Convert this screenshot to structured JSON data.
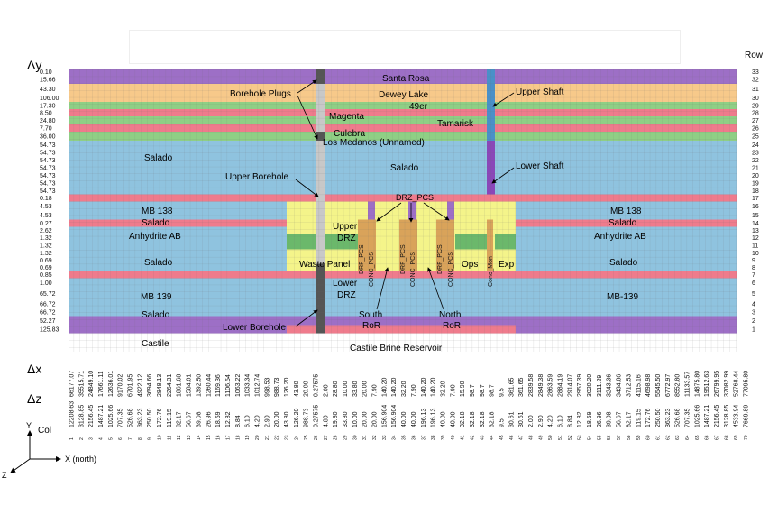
{
  "header": {
    "dy_label": "Δy",
    "row_label": "Row",
    "dx_label": "Δx",
    "dz_label": "Δz",
    "col_label": "Col"
  },
  "colors": {
    "purple": "#9d6fc6",
    "orange": "#f7c98a",
    "green": "#8fcf85",
    "pink": "#ef7b8c",
    "blue": "#8fc3df",
    "yellow": "#f4f48a",
    "waste_green": "#6bb86b",
    "orange_col": "#d9a35a",
    "shaft_blue": "#4a90c8",
    "shaft_purple": "#8a47b8",
    "borehole_dark": "#555555",
    "borehole_light": "#c8c8c8"
  },
  "rows": [
    {
      "row": "33",
      "dy": "0.10",
      "zone": "purple",
      "label": "Santa Rosa"
    },
    {
      "row": "32",
      "dy": "15.66",
      "zone": "purple",
      "label": ""
    },
    {
      "row": "31",
      "dy": "43.30",
      "zone": "orange",
      "label": "Dewey Lake"
    },
    {
      "row": "30",
      "dy": "106.00",
      "zone": "orange",
      "label": ""
    },
    {
      "row": "29",
      "dy": "17.30",
      "zone": "green",
      "label": "49er"
    },
    {
      "row": "28",
      "dy": "8.50",
      "zone": "pink",
      "label": "Magenta"
    },
    {
      "row": "27",
      "dy": "24.80",
      "zone": "green",
      "label": "Tamarisk"
    },
    {
      "row": "26",
      "dy": "7.70",
      "zone": "pink",
      "label": "Culebra"
    },
    {
      "row": "25",
      "dy": "36.00",
      "zone": "green",
      "label": "Los Medanos (Unnamed)"
    },
    {
      "row": "24",
      "dy": "54.73",
      "zone": "blue",
      "label": ""
    },
    {
      "row": "23",
      "dy": "54.73",
      "zone": "blue",
      "label": ""
    },
    {
      "row": "22",
      "dy": "54.73",
      "zone": "blue",
      "label": ""
    },
    {
      "row": "21",
      "dy": "54.73",
      "zone": "blue",
      "label": ""
    },
    {
      "row": "20",
      "dy": "54.73",
      "zone": "blue",
      "label": ""
    },
    {
      "row": "19",
      "dy": "54.73",
      "zone": "blue",
      "label": ""
    },
    {
      "row": "18",
      "dy": "54.73",
      "zone": "blue",
      "label": ""
    },
    {
      "row": "17",
      "dy": "0.18",
      "zone": "pink",
      "label": ""
    },
    {
      "row": "16",
      "dy": "4.53",
      "zone": "blue",
      "label": ""
    },
    {
      "row": "15",
      "dy": "4.53",
      "zone": "blue",
      "label": ""
    },
    {
      "row": "14",
      "dy": "0.27",
      "zone": "pink",
      "label": ""
    },
    {
      "row": "13",
      "dy": "2.62",
      "zone": "blue",
      "label": ""
    },
    {
      "row": "12",
      "dy": "1.32",
      "zone": "blue",
      "label": ""
    },
    {
      "row": "11",
      "dy": "1.32",
      "zone": "blue",
      "label": ""
    },
    {
      "row": "10",
      "dy": "1.32",
      "zone": "blue",
      "label": ""
    },
    {
      "row": "9",
      "dy": "0.69",
      "zone": "blue",
      "label": ""
    },
    {
      "row": "8",
      "dy": "0.69",
      "zone": "blue",
      "label": ""
    },
    {
      "row": "7",
      "dy": "0.85",
      "zone": "pink",
      "label": ""
    },
    {
      "row": "6",
      "dy": "1.00",
      "zone": "blue",
      "label": ""
    },
    {
      "row": "5",
      "dy": "65.72",
      "zone": "blue",
      "label": ""
    },
    {
      "row": "4",
      "dy": "66.72",
      "zone": "blue",
      "label": ""
    },
    {
      "row": "3",
      "dy": "66.72",
      "zone": "blue",
      "label": ""
    },
    {
      "row": "2",
      "dy": "52.27",
      "zone": "purple",
      "label": ""
    },
    {
      "row": "1",
      "dy": "125.83",
      "zone": "purple",
      "label": ""
    }
  ],
  "columns": [
    {
      "col": "1",
      "dx": "66177.07",
      "dz": "12208.63"
    },
    {
      "col": "2",
      "dx": "35515.71",
      "dz": "3128.85"
    },
    {
      "col": "3",
      "dx": "24849.10",
      "dz": "2156.45"
    },
    {
      "col": "4",
      "dx": "17661.11",
      "dz": "1487.21"
    },
    {
      "col": "5",
      "dx": "12636.01",
      "dz": "1025.66"
    },
    {
      "col": "6",
      "dx": "9170.02",
      "dz": "707.35"
    },
    {
      "col": "7",
      "dx": "6701.95",
      "dz": "526.68"
    },
    {
      "col": "8",
      "dx": "4922.12",
      "dz": "363.23"
    },
    {
      "col": "9",
      "dx": "3694.66",
      "dz": "250.50"
    },
    {
      "col": "10",
      "dx": "2848.13",
      "dz": "172.76"
    },
    {
      "col": "11",
      "dx": "2264.31",
      "dz": "119.15"
    },
    {
      "col": "12",
      "dx": "1861.68",
      "dz": "82.17"
    },
    {
      "col": "13",
      "dx": "1584.01",
      "dz": "56.67"
    },
    {
      "col": "14",
      "dx": "1392.50",
      "dz": "39.08"
    },
    {
      "col": "15",
      "dx": "1260.44",
      "dz": "26.96"
    },
    {
      "col": "16",
      "dx": "1169.36",
      "dz": "18.59"
    },
    {
      "col": "17",
      "dx": "1106.54",
      "dz": "12.82"
    },
    {
      "col": "18",
      "dx": "1063.22",
      "dz": "8.84"
    },
    {
      "col": "19",
      "dx": "1033.34",
      "dz": "6.10"
    },
    {
      "col": "20",
      "dx": "1012.74",
      "dz": "4.20"
    },
    {
      "col": "21",
      "dx": "998.53",
      "dz": "2.90"
    },
    {
      "col": "22",
      "dx": "988.73",
      "dz": "20.00"
    },
    {
      "col": "23",
      "dx": "126.20",
      "dz": "43.80"
    },
    {
      "col": "24",
      "dx": "43.80",
      "dz": "126.20"
    },
    {
      "col": "25",
      "dx": "20.00",
      "dz": "988.73"
    },
    {
      "col": "26",
      "dx": "0.27575",
      "dz": "0.27575"
    },
    {
      "col": "27",
      "dx": "2.00",
      "dz": "4.80"
    },
    {
      "col": "28",
      "dx": "28.80",
      "dz": "19.80"
    },
    {
      "col": "29",
      "dx": "10.00",
      "dz": "33.80"
    },
    {
      "col": "30",
      "dx": "33.80",
      "dz": "10.00"
    },
    {
      "col": "31",
      "dx": "20.00",
      "dz": "20.00"
    },
    {
      "col": "32",
      "dx": "7.90",
      "dz": "20.00"
    },
    {
      "col": "33",
      "dx": "140.20",
      "dz": "156.904"
    },
    {
      "col": "34",
      "dx": "140.20",
      "dz": "156.904"
    },
    {
      "col": "35",
      "dx": "32.20",
      "dz": "40.00"
    },
    {
      "col": "36",
      "dx": "7.90",
      "dz": "40.00"
    },
    {
      "col": "37",
      "dx": "140.20",
      "dz": "196.13"
    },
    {
      "col": "38",
      "dx": "140.20",
      "dz": "196.13"
    },
    {
      "col": "39",
      "dx": "32.20",
      "dz": "40.00"
    },
    {
      "col": "40",
      "dx": "7.90",
      "dz": "40.00"
    },
    {
      "col": "41",
      "dx": "15.90",
      "dz": "32.18"
    },
    {
      "col": "42",
      "dx": "98.7",
      "dz": "32.18"
    },
    {
      "col": "43",
      "dx": "98.7",
      "dz": "32.18"
    },
    {
      "col": "44",
      "dx": "98.7",
      "dz": "32.18"
    },
    {
      "col": "45",
      "dx": "9.5",
      "dz": "9.5"
    },
    {
      "col": "46",
      "dx": "361.65",
      "dz": "30.61"
    },
    {
      "col": "47",
      "dx": "361.65",
      "dz": "30.61"
    },
    {
      "col": "48",
      "dx": "2839.58",
      "dz": "2.00"
    },
    {
      "col": "49",
      "dx": "2849.38",
      "dz": "2.90"
    },
    {
      "col": "50",
      "dx": "2863.59",
      "dz": "4.20"
    },
    {
      "col": "51",
      "dx": "2884.19",
      "dz": "6.10"
    },
    {
      "col": "52",
      "dx": "2914.07",
      "dz": "8.84"
    },
    {
      "col": "53",
      "dx": "2957.39",
      "dz": "12.82"
    },
    {
      "col": "54",
      "dx": "3020.20",
      "dz": "18.59"
    },
    {
      "col": "55",
      "dx": "3111.29",
      "dz": "26.96"
    },
    {
      "col": "56",
      "dx": "3243.36",
      "dz": "39.08"
    },
    {
      "col": "57",
      "dx": "3434.86",
      "dz": "56.67"
    },
    {
      "col": "58",
      "dx": "3712.53",
      "dz": "82.17"
    },
    {
      "col": "59",
      "dx": "4115.16",
      "dz": "119.15"
    },
    {
      "col": "60",
      "dx": "4698.98",
      "dz": "172.76"
    },
    {
      "col": "61",
      "dx": "5545.50",
      "dz": "250.50"
    },
    {
      "col": "62",
      "dx": "6772.97",
      "dz": "363.23"
    },
    {
      "col": "63",
      "dx": "8552.80",
      "dz": "526.68"
    },
    {
      "col": "64",
      "dx": "11133.57",
      "dz": "707.35"
    },
    {
      "col": "65",
      "dx": "14875.80",
      "dz": "1025.66"
    },
    {
      "col": "66",
      "dx": "19512.63",
      "dz": "1487.21"
    },
    {
      "col": "67",
      "dx": "26799.95",
      "dz": "2156.45"
    },
    {
      "col": "68",
      "dx": "37082.99",
      "dz": "3128.85"
    },
    {
      "col": "69",
      "dx": "52768.44",
      "dz": "4533.94"
    },
    {
      "col": "70",
      "dx": "77095.80",
      "dz": "7669.89"
    }
  ],
  "region_labels": {
    "santa_rosa": "Santa Rosa",
    "dewey_lake": "Dewey Lake",
    "forty_niner": "49er",
    "magenta": "Magenta",
    "tamarisk": "Tamarisk",
    "culebra": "Culebra",
    "los_medanos": "Los Medanos (Unnamed)",
    "salado_left_upper": "Salado",
    "salado_center_upper": "Salado",
    "mb138_left": "MB 138",
    "mb138_right": "MB 138",
    "salado_left_mid": "Salado",
    "salado_right_mid": "Salado",
    "anhydrite_left": "Anhydrite AB",
    "anhydrite_right": "Anhydrite AB",
    "salado_left_repo": "Salado",
    "salado_right_repo": "Salado",
    "mb139_left": "MB 139",
    "mb139_right": "MB-139",
    "salado_left_lower": "Salado",
    "castile": "Castile",
    "castile_brine": "Castile Brine Reservoir",
    "upper_drz_1": "Upper",
    "upper_drz_2": "DRZ",
    "lower_drz_1": "Lower",
    "lower_drz_2": "DRZ",
    "waste_panel": "Waste Panel",
    "ops": "Ops",
    "exp": "Exp",
    "conc_mon": "Conc_Mon",
    "drf_pcs_1": "DRF_PCS",
    "drf_pcs_2": "DRF_PCS",
    "drf_pcs_3": "DRF_PCS",
    "conc_pcs_1": "CONC_PCS",
    "conc_pcs_2": "CONC_PCS",
    "conc_pcs_3": "CONC_PCS"
  },
  "callouts": {
    "borehole_plugs": "Borehole Plugs",
    "upper_shaft": "Upper Shaft",
    "upper_borehole": "Upper Borehole",
    "lower_shaft": "Lower Shaft",
    "drz_pcs": "DRZ_PCS",
    "south_ror_1": "South",
    "south_ror_2": "RoR",
    "north_ror_1": "North",
    "north_ror_2": "RoR",
    "lower_borehole": "Lower Borehole"
  },
  "axes": {
    "y": "Y",
    "x": "X (north)",
    "z": "Z"
  }
}
